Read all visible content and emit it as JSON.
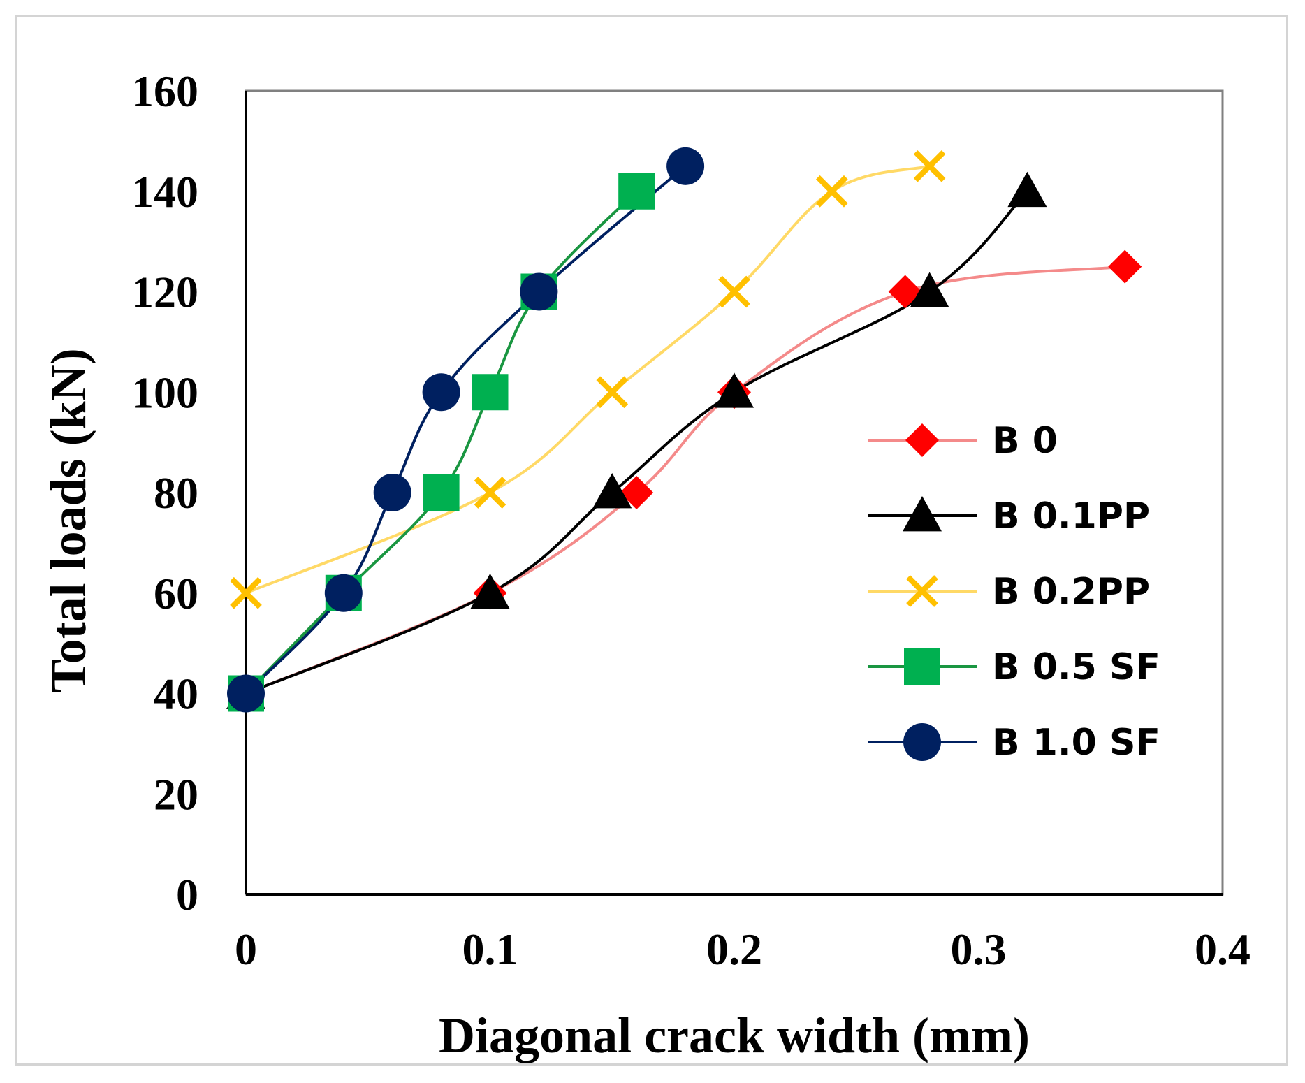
{
  "chart_data": {
    "type": "line",
    "title": "",
    "xlabel": "Diagonal crack width (mm)",
    "ylabel": "Total loads (kN)",
    "xlim": [
      0,
      0.4
    ],
    "ylim": [
      0,
      160
    ],
    "xticks": [
      "0",
      "0.1",
      "0.2",
      "0.3",
      "0.4"
    ],
    "yticks": [
      "0",
      "20",
      "40",
      "60",
      "80",
      "100",
      "120",
      "140",
      "160"
    ],
    "grid": false,
    "legend_position": "right",
    "series": [
      {
        "name": "B 0",
        "color": "#f48a8a",
        "marker_color": "#ff0000",
        "marker": "diamond",
        "points": [
          [
            0,
            40
          ],
          [
            0.1,
            60
          ],
          [
            0.16,
            80
          ],
          [
            0.2,
            100
          ],
          [
            0.27,
            120
          ],
          [
            0.36,
            125
          ]
        ]
      },
      {
        "name": "B 0.1PP",
        "color": "#000000",
        "marker_color": "#000000",
        "marker": "triangle",
        "points": [
          [
            0,
            40
          ],
          [
            0.1,
            60
          ],
          [
            0.15,
            80
          ],
          [
            0.2,
            100
          ],
          [
            0.28,
            120
          ],
          [
            0.32,
            140
          ]
        ]
      },
      {
        "name": "B 0.2PP",
        "color": "#ffd966",
        "marker_color": "#ffc000",
        "marker": "x",
        "points": [
          [
            0,
            60
          ],
          [
            0.1,
            80
          ],
          [
            0.15,
            100
          ],
          [
            0.2,
            120
          ],
          [
            0.24,
            140
          ],
          [
            0.28,
            145
          ]
        ]
      },
      {
        "name": "B 0.5 SF",
        "color": "#1a9641",
        "marker_color": "#00b050",
        "marker": "square",
        "points": [
          [
            0,
            40
          ],
          [
            0.04,
            60
          ],
          [
            0.08,
            80
          ],
          [
            0.1,
            100
          ],
          [
            0.12,
            120
          ],
          [
            0.16,
            140
          ]
        ]
      },
      {
        "name": "B 1.0 SF",
        "color": "#002060",
        "marker_color": "#002060",
        "marker": "circle",
        "points": [
          [
            0,
            40
          ],
          [
            0.04,
            60
          ],
          [
            0.06,
            80
          ],
          [
            0.08,
            100
          ],
          [
            0.12,
            120
          ],
          [
            0.18,
            145
          ]
        ]
      }
    ]
  }
}
